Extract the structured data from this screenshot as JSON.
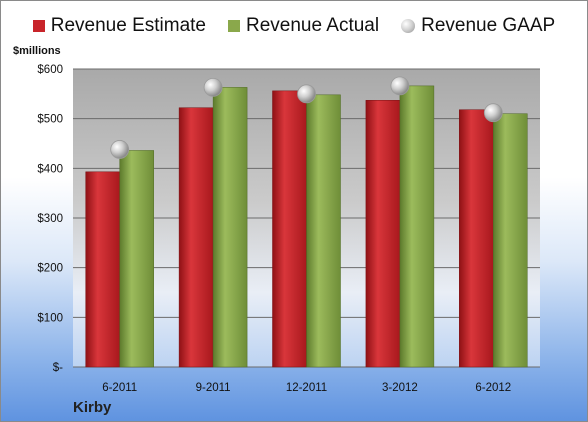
{
  "legend": {
    "estimate_label": "Revenue Estimate",
    "actual_label": "Revenue Actual",
    "gaap_label": "Revenue GAAP"
  },
  "units_label": "$millions",
  "company": "Kirby",
  "colors": {
    "estimate": "#c8242a",
    "actual": "#8aa84b",
    "gaap": "#c0c0c0"
  },
  "chart_data": {
    "type": "bar",
    "categories": [
      "6-2011",
      "9-2011",
      "12-2011",
      "3-2012",
      "6-2012"
    ],
    "series": [
      {
        "name": "Revenue Estimate",
        "values": [
          393,
          522,
          556,
          537,
          518
        ]
      },
      {
        "name": "Revenue Actual",
        "values": [
          436,
          563,
          548,
          566,
          510
        ]
      },
      {
        "name": "Revenue GAAP",
        "values": [
          438,
          563,
          550,
          566,
          512
        ]
      }
    ],
    "ylim": [
      0,
      600
    ],
    "ytick_values": [
      0,
      100,
      200,
      300,
      400,
      500,
      600
    ],
    "ytick_labels": [
      "$-",
      "$100",
      "$200",
      "$300",
      "$400",
      "$500",
      "$600"
    ],
    "grid": true,
    "legend_position": "top"
  }
}
